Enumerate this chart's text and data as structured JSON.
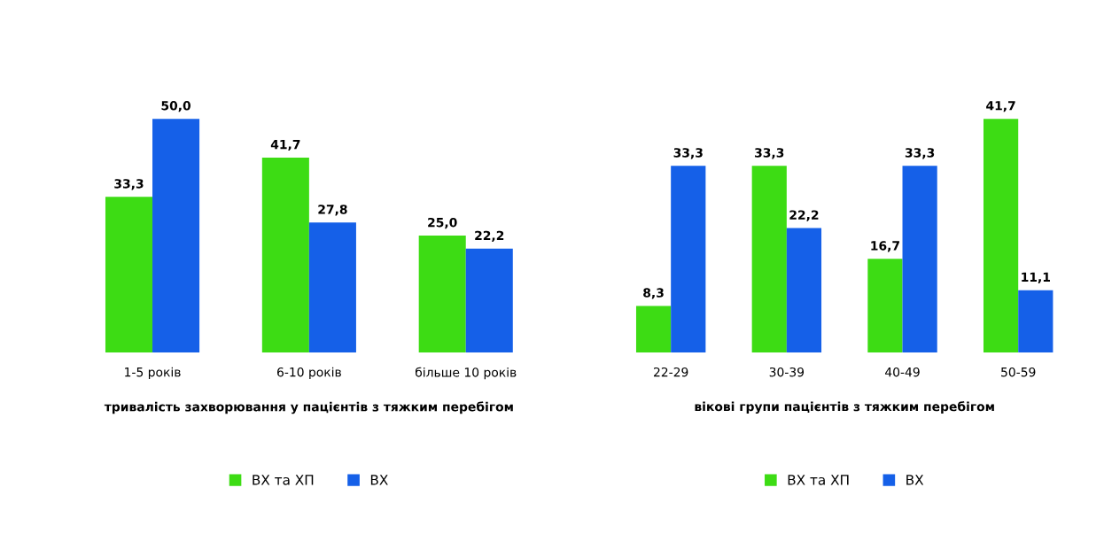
{
  "chart_data": [
    {
      "type": "bar",
      "categories": [
        "1-5 років",
        "6-10 років",
        "більше 10 років"
      ],
      "xlabel": "тривалість захворювання у пацієнтів з тяжким перебігом",
      "tick_labels": "x",
      "legend": "bottom",
      "grid": false,
      "series": [
        {
          "name": "ВХ та ХП",
          "color": "#3ddc14",
          "values": [
            33.3,
            41.7,
            25.0
          ],
          "value_labels": [
            "33,3",
            "41,7",
            "25,0"
          ]
        },
        {
          "name": "ВХ",
          "color": "#1560e8",
          "values": [
            50.0,
            27.8,
            22.2
          ],
          "value_labels": [
            "50,0",
            "27,8",
            "22,2"
          ]
        }
      ]
    },
    {
      "type": "bar",
      "categories": [
        "22-29",
        "30-39",
        "40-49",
        "50-59"
      ],
      "xlabel": "вікові групи пацієнтів з тяжким перебігом",
      "tick_labels": "x",
      "legend": "bottom",
      "grid": false,
      "series": [
        {
          "name": "ВХ та ХП",
          "color": "#3ddc14",
          "values": [
            8.3,
            33.3,
            16.7,
            41.7
          ],
          "value_labels": [
            "8,3",
            "33,3",
            "16,7",
            "41,7"
          ]
        },
        {
          "name": "ВХ",
          "color": "#1560e8",
          "values": [
            33.3,
            22.2,
            33.3,
            11.1
          ],
          "value_labels": [
            "33,3",
            "22,2",
            "33,3",
            "11,1"
          ]
        }
      ]
    }
  ]
}
